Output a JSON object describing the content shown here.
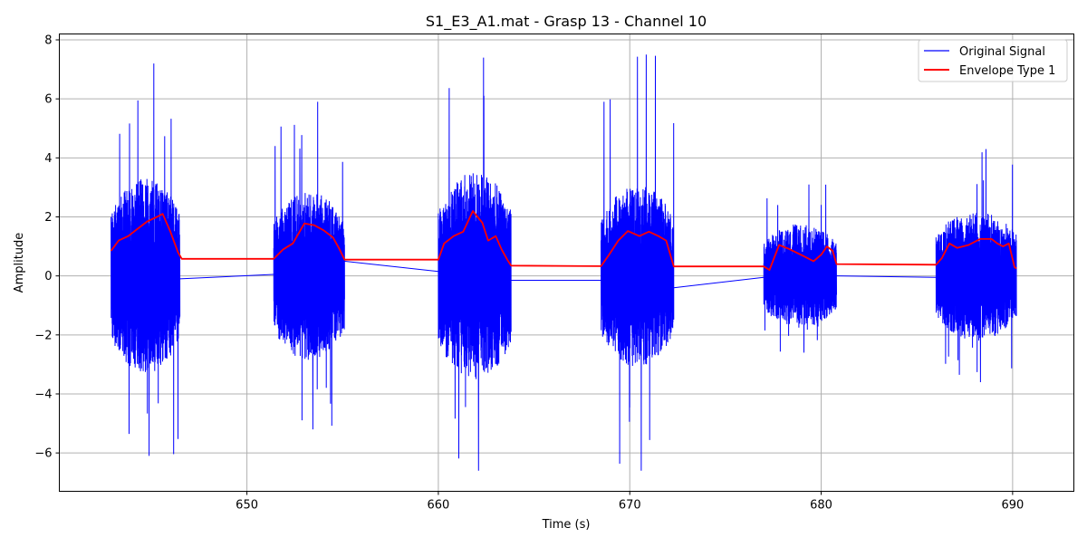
{
  "chart_data": {
    "type": "line",
    "title": "S1_E3_A1.mat - Grasp 13 - Channel 10",
    "xlabel": "Time (s)",
    "ylabel": "Amplitude",
    "xlim": [
      640.2,
      693.2
    ],
    "ylim": [
      -7.3,
      8.2
    ],
    "xticks": [
      650,
      660,
      670,
      680,
      690
    ],
    "yticks": [
      -6,
      -4,
      -2,
      0,
      2,
      4,
      6,
      8
    ],
    "grid": true,
    "legend_position": "top-right",
    "series": [
      {
        "name": "Original Signal",
        "color": "#0000ff",
        "bursts": [
          {
            "start": 642.9,
            "end": 646.5,
            "max": 7.2,
            "min": -6.1,
            "typical": 3.0
          },
          {
            "start": 651.4,
            "end": 655.1,
            "max": 5.9,
            "min": -5.2,
            "typical": 2.6
          },
          {
            "start": 660.0,
            "end": 663.8,
            "max": 7.4,
            "min": -6.6,
            "typical": 3.2
          },
          {
            "start": 668.5,
            "end": 672.3,
            "max": 7.5,
            "min": -6.6,
            "typical": 2.8
          },
          {
            "start": 677.0,
            "end": 680.8,
            "max": 3.1,
            "min": -2.6,
            "typical": 1.6
          },
          {
            "start": 686.0,
            "end": 690.2,
            "max": 4.3,
            "min": -3.6,
            "typical": 2.0
          }
        ],
        "connectors": [
          {
            "x": [
              646.5,
              651.4
            ],
            "y": [
              -0.1,
              0.05
            ]
          },
          {
            "x": [
              655.1,
              660.0
            ],
            "y": [
              0.5,
              0.15
            ]
          },
          {
            "x": [
              663.8,
              668.5
            ],
            "y": [
              -0.15,
              -0.15
            ]
          },
          {
            "x": [
              672.3,
              677.0
            ],
            "y": [
              -0.4,
              -0.05
            ]
          },
          {
            "x": [
              680.8,
              686.0
            ],
            "y": [
              0.0,
              -0.05
            ]
          }
        ]
      },
      {
        "name": "Envelope Type 1",
        "color": "#ff0000",
        "x": [
          642.9,
          643.3,
          643.8,
          644.3,
          644.8,
          645.3,
          645.6,
          646.0,
          646.4,
          646.6,
          651.4,
          651.9,
          652.4,
          653.0,
          653.5,
          654.0,
          654.5,
          654.8,
          655.1,
          660.0,
          660.3,
          660.8,
          661.3,
          661.8,
          662.3,
          662.6,
          663.0,
          663.3,
          663.6,
          663.8,
          668.5,
          668.9,
          669.4,
          669.9,
          670.5,
          671.0,
          671.5,
          671.9,
          672.3,
          677.0,
          677.3,
          677.8,
          678.3,
          679.0,
          679.6,
          680.0,
          680.3,
          680.6,
          680.8,
          686.0,
          686.3,
          686.7,
          687.1,
          687.7,
          688.3,
          688.9,
          689.2,
          689.5,
          689.8,
          690.1,
          690.2
        ],
        "y": [
          0.85,
          1.2,
          1.35,
          1.6,
          1.85,
          2.0,
          2.1,
          1.5,
          0.8,
          0.58,
          0.58,
          0.9,
          1.1,
          1.78,
          1.72,
          1.55,
          1.3,
          0.95,
          0.55,
          0.55,
          1.1,
          1.35,
          1.5,
          2.2,
          1.8,
          1.2,
          1.35,
          0.9,
          0.55,
          0.35,
          0.33,
          0.7,
          1.2,
          1.52,
          1.35,
          1.5,
          1.35,
          1.2,
          0.32,
          0.32,
          0.2,
          1.05,
          0.92,
          0.7,
          0.5,
          0.72,
          1.0,
          0.85,
          0.4,
          0.38,
          0.6,
          1.1,
          0.95,
          1.05,
          1.25,
          1.25,
          1.1,
          1.0,
          1.1,
          0.3,
          0.25
        ]
      }
    ]
  }
}
